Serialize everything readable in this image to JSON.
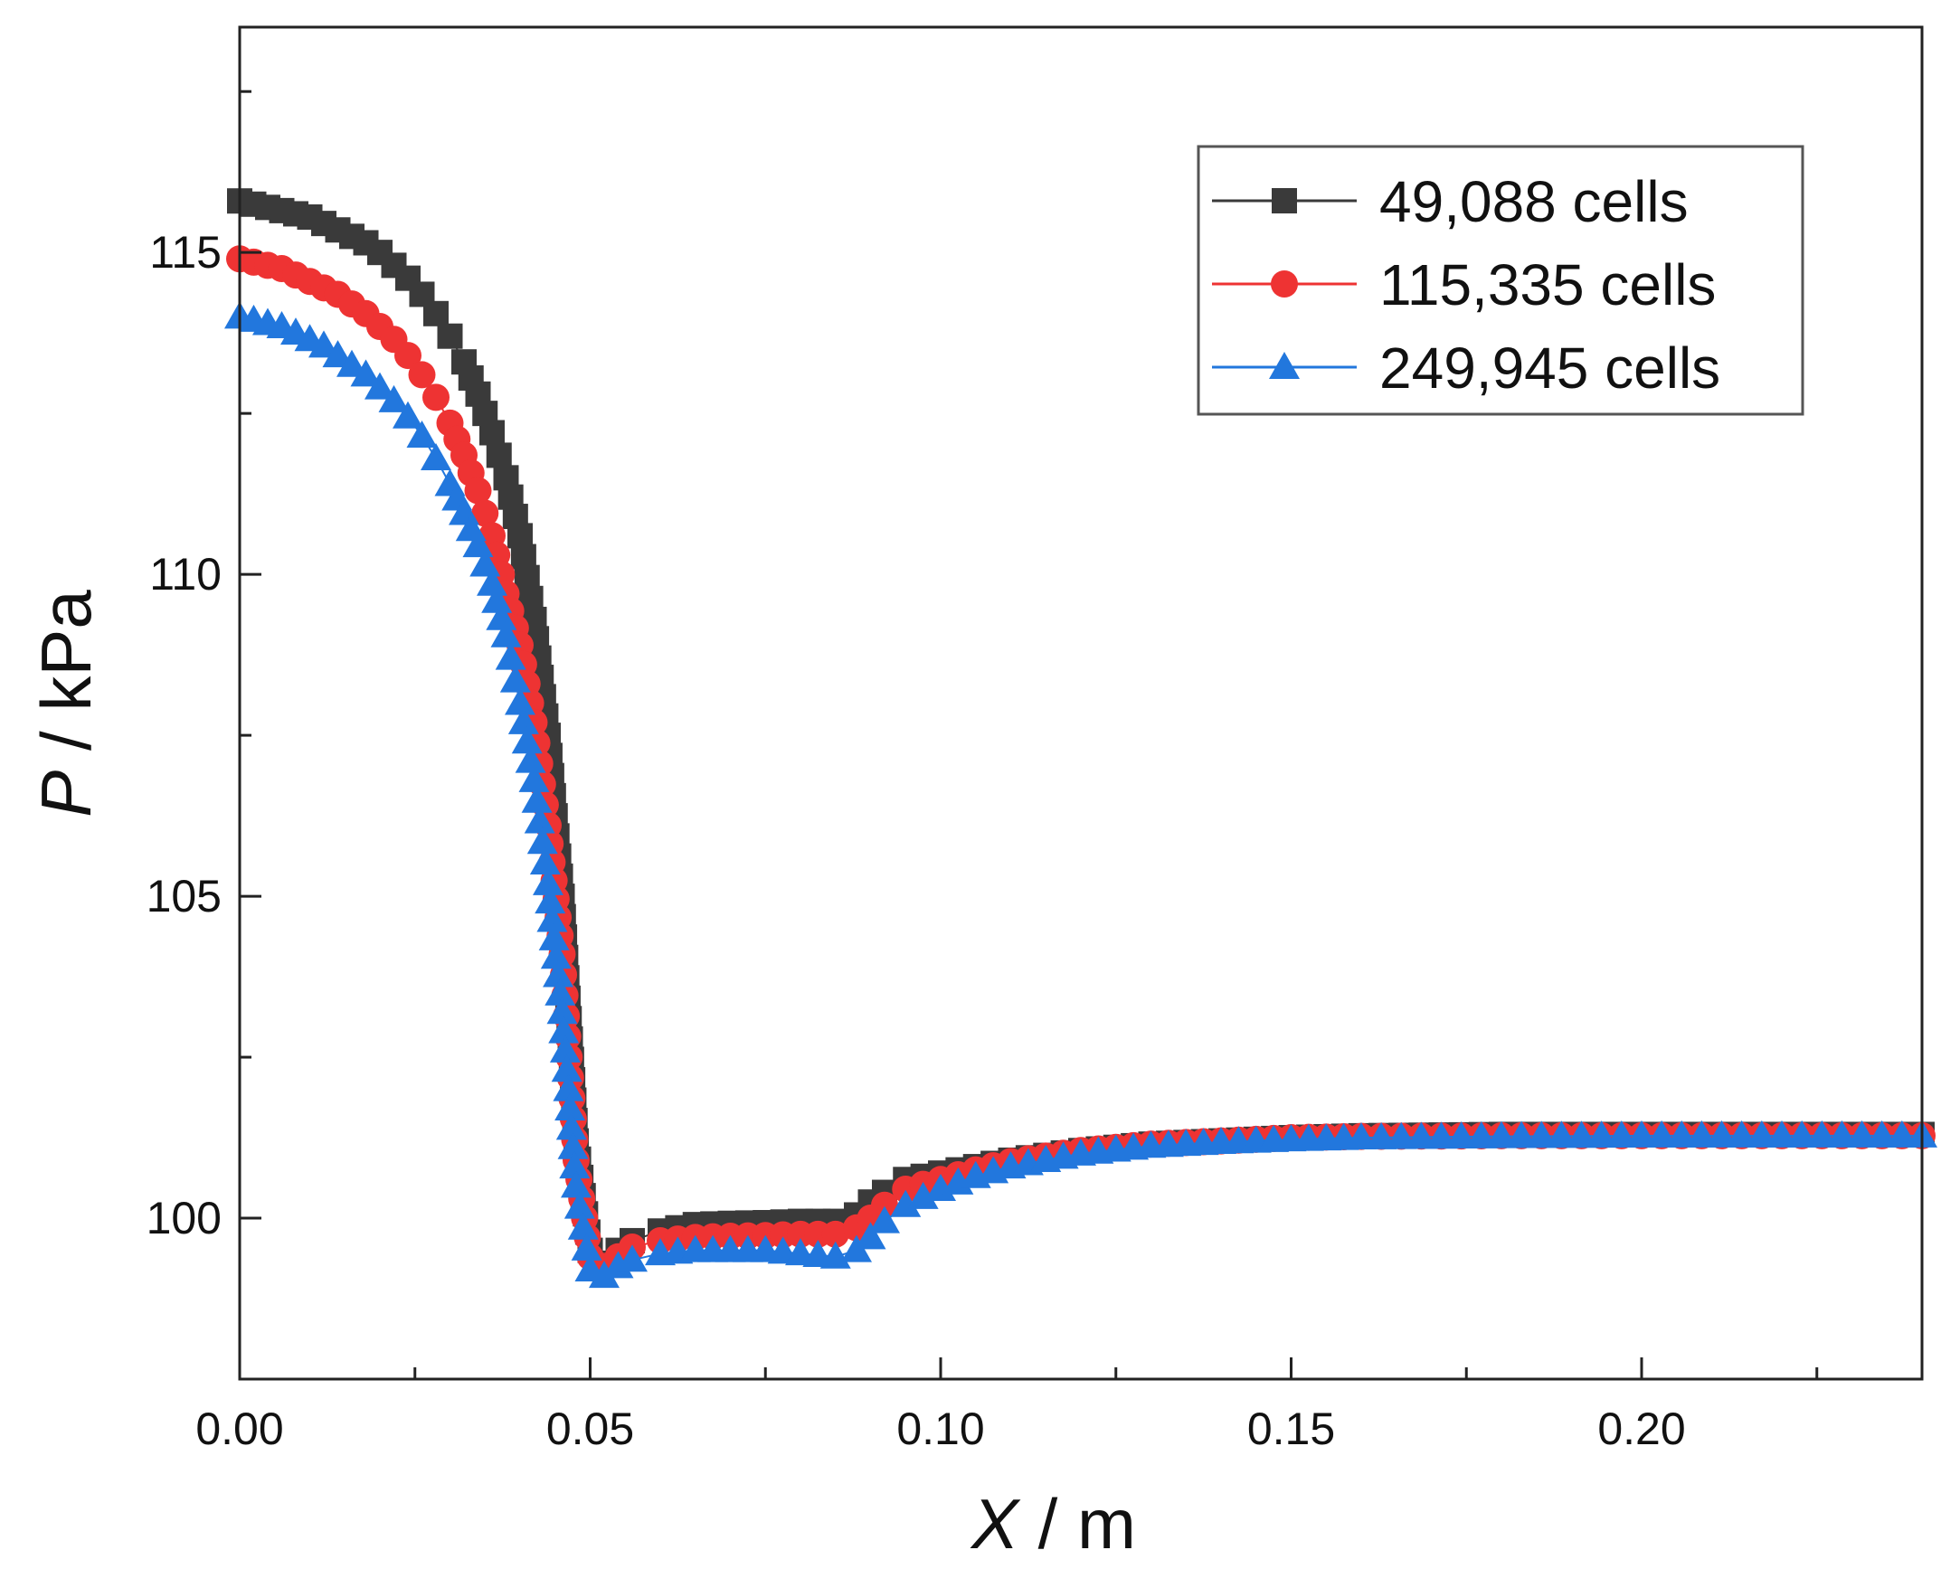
{
  "chart_data": {
    "type": "scatter",
    "title": "",
    "xlabel": "X / m",
    "xlabel_var": "X",
    "xlabel_unit": " / m",
    "ylabel": "P / kPa",
    "ylabel_var": "P",
    "ylabel_unit": " / kPa",
    "xlim": [
      0,
      0.24
    ],
    "ylim": [
      97.5,
      118.5
    ],
    "x_ticks": [
      0.0,
      0.05,
      0.1,
      0.15,
      0.2
    ],
    "x_tick_labels": [
      "0.00",
      "0.05",
      "0.10",
      "0.15",
      "0.20"
    ],
    "y_ticks": [
      100,
      105,
      110,
      115
    ],
    "y_tick_labels": [
      "100",
      "105",
      "110",
      "115"
    ],
    "grid": false,
    "legend_position": "top-right",
    "series": [
      {
        "name": "49,088 cells",
        "color": "#3a3a3a",
        "marker": "square",
        "x": [
          0.0,
          0.002,
          0.004,
          0.006,
          0.008,
          0.01,
          0.012,
          0.014,
          0.016,
          0.018,
          0.02,
          0.022,
          0.024,
          0.026,
          0.028,
          0.03,
          0.032,
          0.034,
          0.036,
          0.038,
          0.04,
          0.042,
          0.044,
          0.046,
          0.048,
          0.05,
          0.052,
          0.054,
          0.056,
          0.06,
          0.065,
          0.07,
          0.075,
          0.08,
          0.085,
          0.088,
          0.09,
          0.092,
          0.095,
          0.1,
          0.105,
          0.11,
          0.12,
          0.13,
          0.14,
          0.15,
          0.16,
          0.18,
          0.2,
          0.22,
          0.24
        ],
        "y": [
          115.8,
          115.75,
          115.7,
          115.65,
          115.6,
          115.55,
          115.45,
          115.35,
          115.25,
          115.15,
          115.0,
          114.8,
          114.6,
          114.35,
          114.05,
          113.7,
          113.3,
          112.8,
          112.2,
          111.5,
          110.6,
          109.3,
          107.5,
          105.0,
          101.2,
          99.5,
          99.3,
          99.5,
          99.65,
          99.8,
          99.9,
          99.92,
          99.93,
          99.95,
          99.95,
          100.05,
          100.25,
          100.4,
          100.6,
          100.7,
          100.8,
          100.9,
          101.05,
          101.15,
          101.2,
          101.25,
          101.28,
          101.3,
          101.3,
          101.3,
          101.3
        ]
      },
      {
        "name": "115,335 cells",
        "color": "#ee3333",
        "marker": "circle",
        "x": [
          0.0,
          0.002,
          0.004,
          0.006,
          0.008,
          0.01,
          0.012,
          0.014,
          0.016,
          0.018,
          0.02,
          0.022,
          0.024,
          0.026,
          0.028,
          0.03,
          0.032,
          0.034,
          0.036,
          0.038,
          0.04,
          0.042,
          0.044,
          0.046,
          0.048,
          0.05,
          0.052,
          0.054,
          0.056,
          0.06,
          0.065,
          0.07,
          0.075,
          0.08,
          0.085,
          0.088,
          0.09,
          0.092,
          0.095,
          0.1,
          0.105,
          0.11,
          0.12,
          0.13,
          0.14,
          0.15,
          0.16,
          0.18,
          0.2,
          0.22,
          0.24
        ],
        "y": [
          114.9,
          114.85,
          114.8,
          114.75,
          114.65,
          114.55,
          114.45,
          114.35,
          114.2,
          114.05,
          113.85,
          113.65,
          113.4,
          113.1,
          112.75,
          112.35,
          111.85,
          111.3,
          110.6,
          109.7,
          108.9,
          107.7,
          106.1,
          104.1,
          100.9,
          99.4,
          99.25,
          99.4,
          99.55,
          99.65,
          99.7,
          99.72,
          99.73,
          99.75,
          99.75,
          99.85,
          100.0,
          100.2,
          100.45,
          100.6,
          100.75,
          100.88,
          101.05,
          101.15,
          101.2,
          101.25,
          101.27,
          101.28,
          101.28,
          101.28,
          101.28
        ]
      },
      {
        "name": "249,945 cells",
        "color": "#2277dd",
        "marker": "triangle",
        "x": [
          0.0,
          0.002,
          0.004,
          0.006,
          0.008,
          0.01,
          0.012,
          0.014,
          0.016,
          0.018,
          0.02,
          0.022,
          0.024,
          0.026,
          0.028,
          0.03,
          0.032,
          0.034,
          0.036,
          0.038,
          0.04,
          0.042,
          0.044,
          0.046,
          0.048,
          0.05,
          0.052,
          0.054,
          0.056,
          0.06,
          0.065,
          0.07,
          0.075,
          0.08,
          0.085,
          0.088,
          0.09,
          0.092,
          0.095,
          0.1,
          0.105,
          0.11,
          0.12,
          0.13,
          0.14,
          0.15,
          0.16,
          0.18,
          0.2,
          0.22,
          0.24
        ],
        "y": [
          114.0,
          113.95,
          113.9,
          113.85,
          113.75,
          113.65,
          113.55,
          113.4,
          113.25,
          113.1,
          112.9,
          112.7,
          112.45,
          112.15,
          111.8,
          111.4,
          110.95,
          110.45,
          109.85,
          109.05,
          108.0,
          106.8,
          105.2,
          103.2,
          100.5,
          99.2,
          99.1,
          99.25,
          99.35,
          99.45,
          99.5,
          99.5,
          99.5,
          99.45,
          99.4,
          99.5,
          99.7,
          99.95,
          100.2,
          100.45,
          100.65,
          100.8,
          101.0,
          101.12,
          101.18,
          101.22,
          101.25,
          101.27,
          101.28,
          101.28,
          101.28
        ]
      }
    ]
  }
}
